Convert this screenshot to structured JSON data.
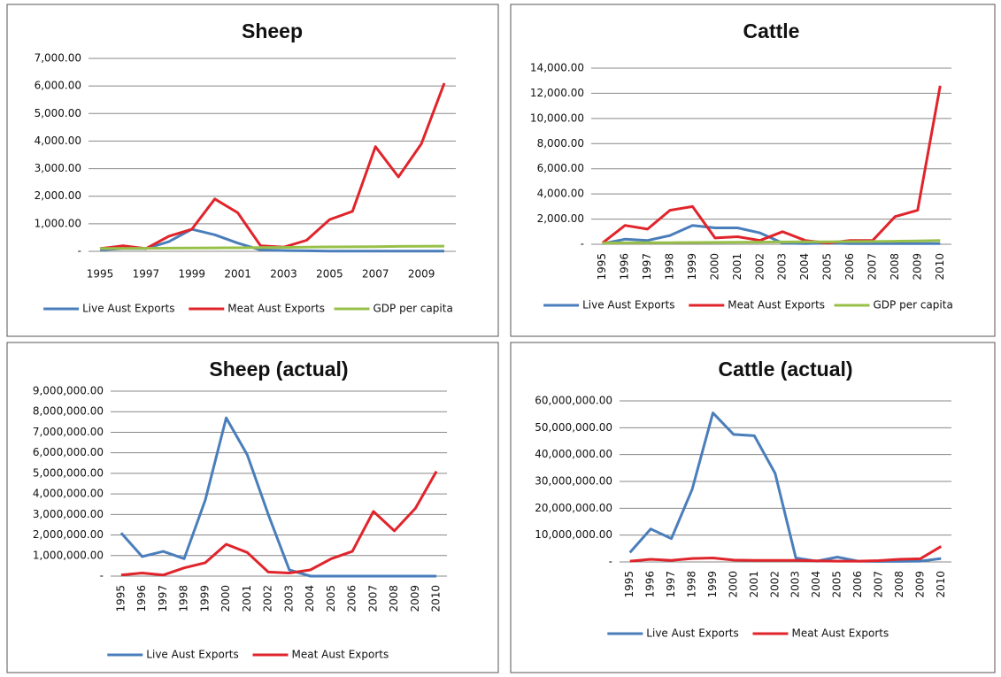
{
  "chart_data": [
    {
      "type": "line",
      "title": "Sheep",
      "categories": [
        "1995",
        null,
        "1997",
        null,
        "1999",
        null,
        "2001",
        null,
        "2003",
        null,
        "2005",
        null,
        "2007",
        null,
        "2009",
        null
      ],
      "series": [
        {
          "name": "Live Aust Exports",
          "color": "#4a7ebb",
          "values": [
            50,
            100,
            100,
            350,
            800,
            600,
            300,
            50,
            30,
            20,
            10,
            10,
            10,
            10,
            10,
            10
          ]
        },
        {
          "name": "Meat Aust Exports",
          "color": "#e0242b",
          "values": [
            100,
            200,
            100,
            550,
            800,
            1900,
            1400,
            200,
            150,
            400,
            1150,
            1450,
            3800,
            2700,
            3900,
            6100
          ]
        },
        {
          "name": "GDP per capita",
          "color": "#98c049",
          "values": [
            100,
            105,
            110,
            115,
            120,
            125,
            130,
            135,
            140,
            150,
            160,
            165,
            170,
            180,
            185,
            190
          ]
        }
      ],
      "ylim": [
        0,
        7000
      ],
      "yticks": [
        {
          "value": 0,
          "label": "-"
        },
        {
          "value": 1000,
          "label": "1,000.00"
        },
        {
          "value": 2000,
          "label": "2,000.00"
        },
        {
          "value": 3000,
          "label": "3,000.00"
        },
        {
          "value": 4000,
          "label": "4,000.00"
        },
        {
          "value": 5000,
          "label": "5,000.00"
        },
        {
          "value": 6000,
          "label": "6,000.00"
        },
        {
          "value": 7000,
          "label": "7,000.00"
        }
      ],
      "grid": true,
      "legend": "bottom"
    },
    {
      "type": "line",
      "title": "Cattle",
      "categories": [
        "1995",
        "1996",
        "1997",
        "1998",
        "1999",
        "2000",
        "2001",
        "2002",
        "2003",
        "2004",
        "2005",
        "2006",
        "2007",
        "2008",
        "2009",
        "2010"
      ],
      "series": [
        {
          "name": "Live Aust Exports",
          "color": "#4a7ebb",
          "values": [
            50,
            400,
            300,
            700,
            1500,
            1300,
            1300,
            900,
            100,
            50,
            100,
            50,
            50,
            50,
            50,
            50
          ]
        },
        {
          "name": "Meat Aust Exports",
          "color": "#e0242b",
          "values": [
            100,
            1500,
            1200,
            2700,
            3000,
            500,
            600,
            300,
            1000,
            300,
            100,
            300,
            300,
            2200,
            2700,
            12600
          ]
        },
        {
          "name": "GDP per capita",
          "color": "#98c049",
          "values": [
            100,
            110,
            120,
            130,
            140,
            150,
            160,
            170,
            180,
            190,
            200,
            210,
            220,
            240,
            260,
            300
          ]
        }
      ],
      "ylim": [
        0,
        14000
      ],
      "yticks": [
        {
          "value": 0,
          "label": "-"
        },
        {
          "value": 2000,
          "label": "2,000.00"
        },
        {
          "value": 4000,
          "label": "4,000.00"
        },
        {
          "value": 6000,
          "label": "6,000.00"
        },
        {
          "value": 8000,
          "label": "8,000.00"
        },
        {
          "value": 10000,
          "label": "10,000.00"
        },
        {
          "value": 12000,
          "label": "12,000.00"
        },
        {
          "value": 14000,
          "label": "14,000.00"
        }
      ],
      "grid": true,
      "legend": "bottom"
    },
    {
      "type": "line",
      "title": "Sheep (actual)",
      "categories": [
        "1995",
        "1996",
        "1997",
        "1998",
        "1999",
        "2000",
        "2001",
        "2002",
        "2003",
        "2004",
        "2005",
        "2006",
        "2007",
        "2008",
        "2009",
        "2010"
      ],
      "series": [
        {
          "name": "Live Aust Exports",
          "color": "#4a7ebb",
          "values": [
            2100000,
            950000,
            1200000,
            850000,
            3700000,
            7700000,
            5900000,
            3000000,
            300000,
            0,
            0,
            0,
            0,
            0,
            0,
            0
          ]
        },
        {
          "name": "Meat Aust Exports",
          "color": "#e0242b",
          "values": [
            50000,
            150000,
            50000,
            400000,
            650000,
            1550000,
            1150000,
            200000,
            150000,
            300000,
            850000,
            1200000,
            3150000,
            2200000,
            3300000,
            5100000
          ]
        }
      ],
      "ylim": [
        0,
        9000000
      ],
      "yticks": [
        {
          "value": 0,
          "label": "-"
        },
        {
          "value": 1000000,
          "label": "1,000,000.00"
        },
        {
          "value": 2000000,
          "label": "2,000,000.00"
        },
        {
          "value": 3000000,
          "label": "3,000,000.00"
        },
        {
          "value": 4000000,
          "label": "4,000,000.00"
        },
        {
          "value": 5000000,
          "label": "5,000,000.00"
        },
        {
          "value": 6000000,
          "label": "6,000,000.00"
        },
        {
          "value": 7000000,
          "label": "7,000,000.00"
        },
        {
          "value": 8000000,
          "label": "8,000,000.00"
        },
        {
          "value": 9000000,
          "label": "9,000,000.00"
        }
      ],
      "grid": true,
      "legend": "bottom"
    },
    {
      "type": "line",
      "title": "Cattle (actual)",
      "categories": [
        "1995",
        "1996",
        "1997",
        "1998",
        "1999",
        "2000",
        "2001",
        "2002",
        "2003",
        "2004",
        "2005",
        "2006",
        "2007",
        "2008",
        "2009",
        "2010"
      ],
      "series": [
        {
          "name": "Live Aust Exports",
          "color": "#4a7ebb",
          "values": [
            3500000,
            12300000,
            8700000,
            27000000,
            55500000,
            47500000,
            47000000,
            33000000,
            1500000,
            300000,
            1800000,
            300000,
            200000,
            200000,
            300000,
            1300000
          ]
        },
        {
          "name": "Meat Aust Exports",
          "color": "#e0242b",
          "values": [
            300000,
            1000000,
            600000,
            1300000,
            1500000,
            700000,
            600000,
            600000,
            600000,
            400000,
            300000,
            300000,
            500000,
            1000000,
            1200000,
            5800000
          ]
        }
      ],
      "ylim": [
        0,
        60000000
      ],
      "yticks": [
        {
          "value": 0,
          "label": "-"
        },
        {
          "value": 10000000,
          "label": "10,000,000.00"
        },
        {
          "value": 20000000,
          "label": "20,000,000.00"
        },
        {
          "value": 30000000,
          "label": "30,000,000.00"
        },
        {
          "value": 40000000,
          "label": "40,000,000.00"
        },
        {
          "value": 50000000,
          "label": "50,000,000.00"
        },
        {
          "value": 60000000,
          "label": "60,000,000.00"
        }
      ],
      "grid": true,
      "legend": "bottom"
    }
  ]
}
